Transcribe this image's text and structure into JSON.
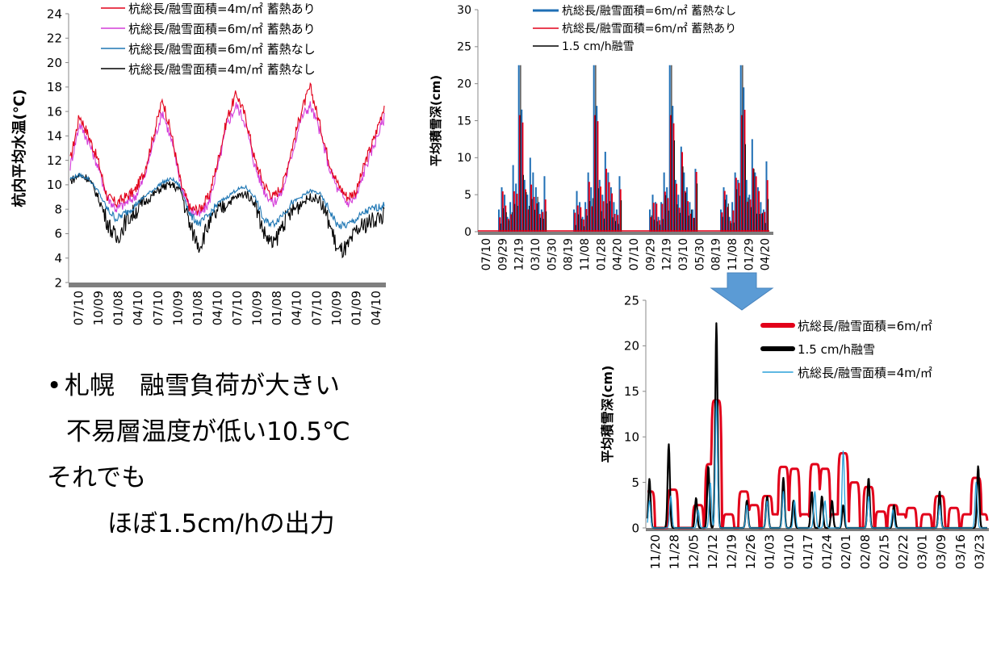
{
  "chart_data": [
    {
      "type": "line",
      "ylabel": "杭内平均水温(℃)",
      "ylim": [
        2,
        24
      ],
      "yticks": [
        "2",
        "4",
        "6",
        "8",
        "10",
        "12",
        "14",
        "16",
        "18",
        "20",
        "22",
        "24"
      ],
      "xticks": [
        "07/10",
        "10/09",
        "01/08",
        "04/10",
        "07/10",
        "10/09",
        "01/08",
        "04/10",
        "07/10",
        "10/09",
        "01/08",
        "04/10",
        "07/10",
        "10/09",
        "01/09",
        "04/10"
      ],
      "legend": "top-right",
      "series": [
        {
          "name": "杭総長/融雪面積=4m/㎡ 蓄熱あり",
          "color": "#e2001a",
          "values": [
            12,
            15.7,
            14,
            12,
            9,
            8.5,
            9,
            9.5,
            11,
            14,
            17,
            14,
            10,
            8,
            8,
            9,
            12,
            15.5,
            17.5,
            15.5,
            12,
            10,
            9,
            10,
            13,
            16,
            18,
            15,
            12,
            10,
            9,
            9.5,
            12,
            14,
            16.5
          ]
        },
        {
          "name": "杭総長/融雪面積=6m/㎡ 蓄熱あり",
          "color": "#d43fd9",
          "values": [
            11.5,
            15,
            13.5,
            11.5,
            9,
            8,
            8.5,
            9,
            10.5,
            13.5,
            16,
            13.5,
            10,
            8,
            7.5,
            8.5,
            11.5,
            15,
            16.5,
            15,
            11.5,
            9.5,
            8.5,
            9.5,
            12.5,
            15.5,
            16.5,
            14.5,
            11.5,
            9.5,
            8.5,
            9,
            11.5,
            13.5,
            15.5
          ]
        },
        {
          "name": "杭総長/融雪面積=6m/㎡ 蓄熱なし",
          "color": "#1f77b4",
          "values": [
            10.5,
            10.8,
            10.5,
            9.5,
            8,
            7.2,
            7.7,
            8.3,
            9,
            9.6,
            10.2,
            10.5,
            9.8,
            7.5,
            6.8,
            7.5,
            8.5,
            9,
            9.6,
            9.8,
            9,
            7,
            6.8,
            7.6,
            8.5,
            9,
            9.5,
            9.3,
            8,
            6.6,
            6.7,
            7.2,
            7.8,
            8.1,
            8.3
          ]
        },
        {
          "name": "杭総長/融雪面積=4m/㎡ 蓄熱なし",
          "color": "#000000",
          "values": [
            10.3,
            10.8,
            10.5,
            9,
            7,
            5.5,
            7,
            7.8,
            8.5,
            9.2,
            9.8,
            10,
            9.5,
            6.5,
            5,
            6.8,
            7.8,
            8.5,
            9,
            9.3,
            8.5,
            6,
            5,
            6.8,
            7.8,
            8.5,
            9,
            8.8,
            7,
            4.5,
            4.8,
            6.2,
            6.8,
            7.2,
            7.5
          ]
        }
      ]
    },
    {
      "type": "bar",
      "ylabel": "平均積雪深(cm)",
      "ylim": [
        0,
        30
      ],
      "yticks": [
        "0",
        "5",
        "10",
        "15",
        "20",
        "25",
        "30"
      ],
      "xticks": [
        "07/10",
        "09/29",
        "12/19",
        "03/10",
        "05/30",
        "08/19",
        "11/08",
        "01/28",
        "04/20",
        "07/10",
        "09/29",
        "12/19",
        "03/10",
        "05/30",
        "08/19",
        "11/08",
        "01/29",
        "04/20"
      ],
      "legend": "top-right",
      "series": [
        {
          "name": "杭総長/融雪面積=6m/㎡ 蓄熱なし",
          "color": "#1f6fb5"
        },
        {
          "name": "杭総長/融雪面積=6m/㎡ 蓄熱あり",
          "color": "#e2001a"
        },
        {
          "name": "1.5 cm/h融雪",
          "color": "#000000"
        }
      ],
      "seasons": [
        {
          "peak": 22.5,
          "values": [
            3,
            6,
            5,
            2,
            4,
            9,
            6.5,
            22.5,
            16.5,
            7,
            5,
            10,
            8,
            6,
            4,
            3,
            7.5
          ]
        },
        {
          "peak": 22.5,
          "values": [
            3,
            5.5,
            4,
            2,
            4,
            8,
            6,
            22.5,
            17,
            7,
            5,
            10.8,
            8,
            6,
            4,
            3,
            7.5
          ]
        },
        {
          "peak": 22.5,
          "values": [
            3,
            5,
            4,
            2,
            4,
            8,
            6,
            22.5,
            17,
            7,
            5,
            11.5,
            8,
            6,
            4,
            3,
            8.5
          ]
        },
        {
          "peak": 22.5,
          "values": [
            3,
            6,
            5,
            2,
            4,
            8,
            7,
            22.5,
            19.5,
            7,
            5,
            12.5,
            8,
            6,
            4,
            3,
            9.5
          ]
        }
      ]
    },
    {
      "type": "line",
      "ylabel": "平均積雪深(cm)",
      "ylim": [
        0,
        25
      ],
      "yticks": [
        "0",
        "5",
        "10",
        "15",
        "20",
        "25"
      ],
      "xticks": [
        "11/20",
        "11/28",
        "12/05",
        "12/12",
        "12/19",
        "12/26",
        "01/03",
        "01/10",
        "01/17",
        "01/24",
        "02/01",
        "02/08",
        "02/15",
        "02/22",
        "03/01",
        "03/09",
        "03/16",
        "03/23"
      ],
      "legend": "top-right",
      "series": [
        {
          "name": "杭総長/融雪面積=6m/㎡",
          "color": "#e2001a",
          "peaks": [
            [
              0.2,
              4
            ],
            [
              2.5,
              4.2
            ],
            [
              5,
              2.5
            ],
            [
              6.2,
              7
            ],
            [
              6.8,
              14
            ],
            [
              8,
              1.5
            ],
            [
              9.5,
              4
            ],
            [
              10.5,
              2.5
            ],
            [
              11.8,
              3.5
            ],
            [
              12.5,
              1.5
            ],
            [
              13.4,
              6.7
            ],
            [
              14.5,
              6.5
            ],
            [
              15.5,
              1.5
            ],
            [
              16.5,
              7
            ],
            [
              17.5,
              6.5
            ],
            [
              18.5,
              1.5
            ],
            [
              19.3,
              8.2
            ],
            [
              20.4,
              5
            ],
            [
              21.8,
              4.5
            ],
            [
              23,
              1.8
            ],
            [
              24.2,
              2.5
            ],
            [
              25,
              1.5
            ],
            [
              26,
              2.2
            ],
            [
              27.5,
              1.5
            ],
            [
              28.8,
              3.5
            ],
            [
              30.2,
              2.2
            ],
            [
              31.5,
              1.5
            ],
            [
              32.4,
              5.5
            ],
            [
              33,
              1.5
            ]
          ]
        },
        {
          "name": "1.5 cm/h融雪",
          "color": "#000000",
          "peaks": [
            [
              0.2,
              5.4
            ],
            [
              2.1,
              9.2
            ],
            [
              4.8,
              3.3
            ],
            [
              6,
              6.8
            ],
            [
              6.8,
              22.5
            ],
            [
              9.8,
              3
            ],
            [
              11.8,
              3.5
            ],
            [
              13.4,
              5.5
            ],
            [
              14.4,
              3
            ],
            [
              16.2,
              4
            ],
            [
              17.2,
              3.5
            ],
            [
              18.2,
              3
            ],
            [
              19.3,
              2.5
            ],
            [
              21.8,
              5.5
            ],
            [
              24.3,
              2.5
            ],
            [
              28.8,
              4
            ],
            [
              32.6,
              6.8
            ]
          ]
        },
        {
          "name": "杭総長/融雪面積=4m/㎡",
          "color": "#2aa0d8",
          "peaks": [
            [
              0.2,
              3
            ],
            [
              2.3,
              3.5
            ],
            [
              5,
              2
            ],
            [
              6.2,
              5
            ],
            [
              6.8,
              14
            ],
            [
              9.8,
              2.5
            ],
            [
              11.8,
              3
            ],
            [
              13.4,
              4
            ],
            [
              14.5,
              3
            ],
            [
              16.5,
              4
            ],
            [
              17.5,
              3
            ],
            [
              19.3,
              8.5
            ],
            [
              21.8,
              3.5
            ],
            [
              24.2,
              2
            ],
            [
              28.8,
              2.5
            ],
            [
              32.4,
              5
            ]
          ]
        }
      ]
    }
  ],
  "note": {
    "bullet": "•",
    "line1": "札幌　融雪負荷が大きい",
    "line2": "不易層温度が低い10.5℃",
    "line3": "それでも",
    "line4": "ほぼ1.5cm/hの出力"
  }
}
